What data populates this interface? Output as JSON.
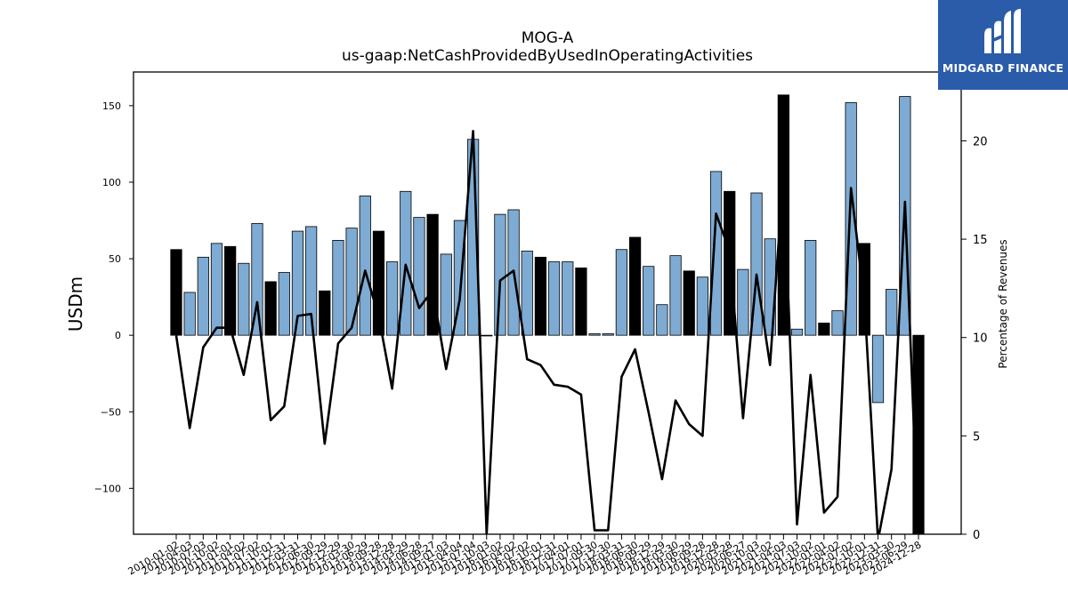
{
  "header": {
    "title": "MOG-A",
    "subtitle": "us-gaap:NetCashProvidedByUsedInOperatingActivities"
  },
  "logo": {
    "text": "MIDGARD FINANCE"
  },
  "chart_data": {
    "type": "bar",
    "ylabel": "USDm",
    "y2label": "Percentage of Revenues",
    "ylim": [
      -130,
      172
    ],
    "y2lim": [
      0,
      23.5
    ],
    "yticks": [
      -100,
      -50,
      0,
      50,
      100,
      150
    ],
    "y2ticks": [
      0,
      5,
      10,
      15,
      20
    ],
    "grid": false,
    "colors": {
      "bar_light": "#7eabd3",
      "bar_dark": "#000000",
      "line": "#000000"
    },
    "bar_count": 56,
    "bar_values": [
      56,
      28,
      51,
      60,
      58,
      47,
      73,
      35,
      41,
      68,
      71,
      29,
      62,
      70,
      91,
      68,
      48,
      94,
      77,
      79,
      53,
      75,
      128,
      0,
      79,
      82,
      55,
      51,
      48,
      48,
      44,
      1,
      1,
      56,
      64,
      45,
      20,
      52,
      42,
      38,
      107,
      94,
      43,
      93,
      63,
      157,
      4,
      62,
      8,
      16,
      152,
      60,
      -44,
      30,
      156,
      -135
    ],
    "bar_colors": [
      "dark",
      "light",
      "light",
      "light",
      "dark",
      "light",
      "light",
      "dark",
      "light",
      "light",
      "light",
      "dark",
      "light",
      "light",
      "light",
      "dark",
      "light",
      "light",
      "light",
      "dark",
      "light",
      "light",
      "light",
      "light",
      "light",
      "light",
      "light",
      "dark",
      "light",
      "light",
      "dark",
      "light",
      "light",
      "light",
      "dark",
      "light",
      "light",
      "light",
      "dark",
      "light",
      "light",
      "dark",
      "light",
      "light",
      "light",
      "dark",
      "light",
      "light",
      "dark",
      "light",
      "light",
      "dark",
      "light",
      "light",
      "light",
      "dark"
    ],
    "line_values": [
      10.1,
      5.4,
      9.5,
      10.5,
      10.5,
      8.1,
      11.8,
      5.8,
      6.5,
      11.1,
      11.2,
      4.6,
      9.7,
      10.5,
      13.4,
      11.1,
      7.4,
      13.7,
      11.5,
      12.4,
      8.4,
      11.9,
      20.5,
      0.0,
      12.9,
      13.4,
      8.9,
      8.6,
      7.6,
      7.5,
      7.1,
      0.2,
      0.2,
      8.0,
      9.4,
      6.2,
      2.8,
      6.8,
      5.6,
      5.0,
      16.3,
      14.4,
      5.9,
      13.2,
      8.6,
      18.4,
      0.5,
      8.1,
      1.1,
      1.9,
      17.6,
      11.8,
      -0.3,
      3.3,
      16.9,
      -0.5
    ],
    "xtick_labels": [
      "2010-01-02",
      "2010-04-03",
      "2010-07-03",
      "2010-10-02",
      "2011-01-01",
      "2011-04-02",
      "2011-07-02",
      "2011-10-01",
      "2011-12-31",
      "2012-03-31",
      "2012-06-30",
      "2012-09-29",
      "2012-12-29",
      "2013-03-30",
      "2013-06-29",
      "2013-09-28",
      "2013-12-28",
      "2014-03-29",
      "2014-06-28",
      "2014-09-27",
      "2015-01-03",
      "2015-04-04",
      "2015-07-04",
      "2015-10-03",
      "2016-01-02",
      "2016-04-02",
      "2016-07-02",
      "2016-10-01",
      "2016-12-31",
      "2017-04-01",
      "2017-07-01",
      "2017-09-30",
      "2017-12-30",
      "2018-03-31",
      "2018-06-30",
      "2018-09-29",
      "2018-12-29",
      "2019-03-30",
      "2019-06-29",
      "2019-09-28",
      "2019-12-28",
      "2020-03-28",
      "2020-06-27",
      "2020-10-03",
      "2021-01-02",
      "2021-04-03",
      "2021-07-03",
      "2021-10-02",
      "2022-01-01",
      "2022-04-02",
      "2022-07-02",
      "2022-10-01",
      "2022-12-31",
      "2023-03-30",
      "2023-06-29",
      "2024-12-28"
    ]
  }
}
